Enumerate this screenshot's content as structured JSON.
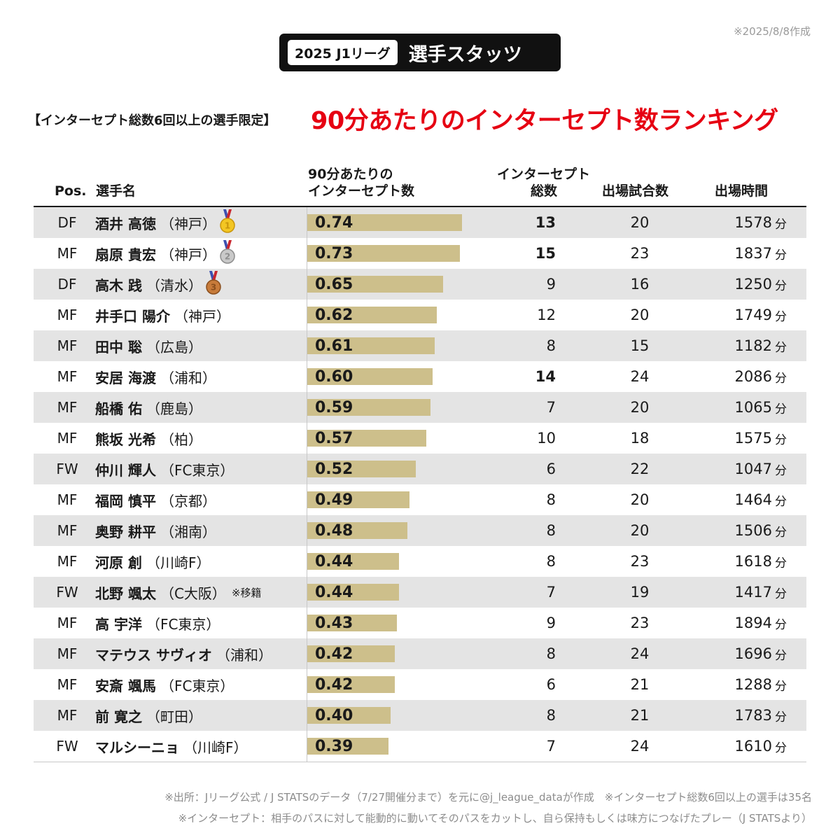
{
  "created": "※2025/8/8作成",
  "badge": {
    "league": "2025 J1リーグ",
    "label": "選手スタッツ"
  },
  "condition": "【インターセプト総数6回以上の選手限定】",
  "headline": "90分あたりのインターセプト数ランキング",
  "headers": {
    "pos": "Pos.",
    "name": "選手名",
    "rate_line1": "90分あたりの",
    "rate_line2": "インターセプト数",
    "total_line1": "インターセプト",
    "total_line2": "総数",
    "games": "出場試合数",
    "minutes": "出場時間"
  },
  "minute_unit": "分",
  "colors": {
    "headline": "#e60012",
    "bar": "#cdbf8b",
    "shade": "#e4e4e4",
    "badge": "#111111"
  },
  "chart_data": {
    "type": "bar",
    "orientation": "horizontal",
    "xlim": [
      0,
      0.74
    ],
    "rows": [
      {
        "pos": "DF",
        "name": "酒井 高徳",
        "club": "（神戸）",
        "note": "",
        "medal": "gold",
        "medal_num": "1",
        "rate": 0.74,
        "rate_label": "0.74",
        "total": "13",
        "total_bold": true,
        "games": "20",
        "minutes": "1578"
      },
      {
        "pos": "MF",
        "name": "扇原 貴宏",
        "club": "（神戸）",
        "note": "",
        "medal": "silver",
        "medal_num": "2",
        "rate": 0.73,
        "rate_label": "0.73",
        "total": "15",
        "total_bold": true,
        "games": "23",
        "minutes": "1837"
      },
      {
        "pos": "DF",
        "name": "高木 践",
        "club": "（清水）",
        "note": "",
        "medal": "bronze",
        "medal_num": "3",
        "rate": 0.65,
        "rate_label": "0.65",
        "total": "9",
        "total_bold": false,
        "games": "16",
        "minutes": "1250"
      },
      {
        "pos": "MF",
        "name": "井手口 陽介",
        "club": "（神戸）",
        "note": "",
        "medal": "",
        "medal_num": "",
        "rate": 0.62,
        "rate_label": "0.62",
        "total": "12",
        "total_bold": false,
        "games": "20",
        "minutes": "1749"
      },
      {
        "pos": "MF",
        "name": "田中 聡",
        "club": "（広島）",
        "note": "",
        "medal": "",
        "medal_num": "",
        "rate": 0.61,
        "rate_label": "0.61",
        "total": "8",
        "total_bold": false,
        "games": "15",
        "minutes": "1182"
      },
      {
        "pos": "MF",
        "name": "安居 海渡",
        "club": "（浦和）",
        "note": "",
        "medal": "",
        "medal_num": "",
        "rate": 0.6,
        "rate_label": "0.60",
        "total": "14",
        "total_bold": true,
        "games": "24",
        "minutes": "2086"
      },
      {
        "pos": "MF",
        "name": "船橋 佑",
        "club": "（鹿島）",
        "note": "",
        "medal": "",
        "medal_num": "",
        "rate": 0.59,
        "rate_label": "0.59",
        "total": "7",
        "total_bold": false,
        "games": "20",
        "minutes": "1065"
      },
      {
        "pos": "MF",
        "name": "熊坂 光希",
        "club": "（柏）",
        "note": "",
        "medal": "",
        "medal_num": "",
        "rate": 0.57,
        "rate_label": "0.57",
        "total": "10",
        "total_bold": false,
        "games": "18",
        "minutes": "1575"
      },
      {
        "pos": "FW",
        "name": "仲川 輝人",
        "club": "（FC東京）",
        "note": "",
        "medal": "",
        "medal_num": "",
        "rate": 0.52,
        "rate_label": "0.52",
        "total": "6",
        "total_bold": false,
        "games": "22",
        "minutes": "1047"
      },
      {
        "pos": "MF",
        "name": "福岡 慎平",
        "club": "（京都）",
        "note": "",
        "medal": "",
        "medal_num": "",
        "rate": 0.49,
        "rate_label": "0.49",
        "total": "8",
        "total_bold": false,
        "games": "20",
        "minutes": "1464"
      },
      {
        "pos": "MF",
        "name": "奥野 耕平",
        "club": "（湘南）",
        "note": "",
        "medal": "",
        "medal_num": "",
        "rate": 0.48,
        "rate_label": "0.48",
        "total": "8",
        "total_bold": false,
        "games": "20",
        "minutes": "1506"
      },
      {
        "pos": "MF",
        "name": "河原 創",
        "club": "（川崎F）",
        "note": "",
        "medal": "",
        "medal_num": "",
        "rate": 0.44,
        "rate_label": "0.44",
        "total": "8",
        "total_bold": false,
        "games": "23",
        "minutes": "1618"
      },
      {
        "pos": "FW",
        "name": "北野 颯太",
        "club": "（C大阪）",
        "note": "※移籍",
        "medal": "",
        "medal_num": "",
        "rate": 0.44,
        "rate_label": "0.44",
        "total": "7",
        "total_bold": false,
        "games": "19",
        "minutes": "1417"
      },
      {
        "pos": "MF",
        "name": "高 宇洋",
        "club": "（FC東京）",
        "note": "",
        "medal": "",
        "medal_num": "",
        "rate": 0.43,
        "rate_label": "0.43",
        "total": "9",
        "total_bold": false,
        "games": "23",
        "minutes": "1894"
      },
      {
        "pos": "MF",
        "name": "マテウス サヴィオ",
        "club": "（浦和）",
        "note": "",
        "medal": "",
        "medal_num": "",
        "rate": 0.42,
        "rate_label": "0.42",
        "total": "8",
        "total_bold": false,
        "games": "24",
        "minutes": "1696"
      },
      {
        "pos": "MF",
        "name": "安斎 颯馬",
        "club": "（FC東京）",
        "note": "",
        "medal": "",
        "medal_num": "",
        "rate": 0.42,
        "rate_label": "0.42",
        "total": "6",
        "total_bold": false,
        "games": "21",
        "minutes": "1288"
      },
      {
        "pos": "MF",
        "name": "前 寛之",
        "club": "（町田）",
        "note": "",
        "medal": "",
        "medal_num": "",
        "rate": 0.4,
        "rate_label": "0.40",
        "total": "8",
        "total_bold": false,
        "games": "21",
        "minutes": "1783"
      },
      {
        "pos": "FW",
        "name": "マルシーニョ",
        "club": "（川崎F）",
        "note": "",
        "medal": "",
        "medal_num": "",
        "rate": 0.39,
        "rate_label": "0.39",
        "total": "7",
        "total_bold": false,
        "games": "24",
        "minutes": "1610"
      }
    ]
  },
  "footer": {
    "line1": "※出所：Jリーグ公式 / J STATSのデータ（7/27開催分まで）を元に@j_league_dataが作成　※インターセプト総数6回以上の選手は35名",
    "line2": "※インターセプト：相手のパスに対して能動的に動いてそのパスをカットし、自ら保持もしくは味方につなげたプレー（J STATSより）"
  }
}
